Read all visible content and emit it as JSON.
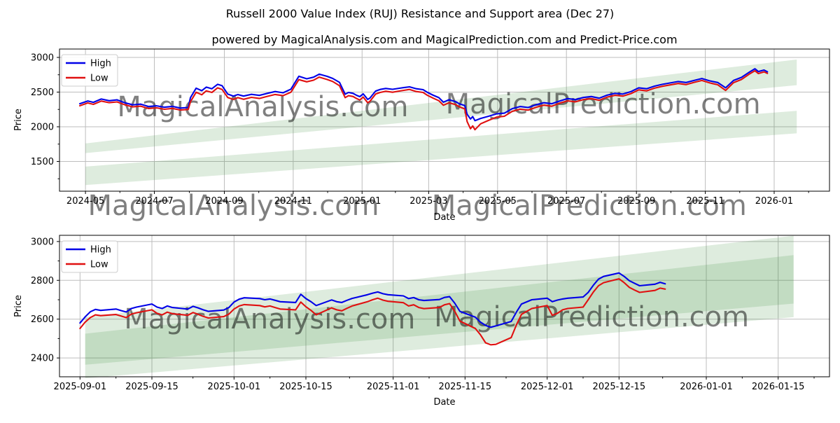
{
  "figure": {
    "title": "Russell 2000 Value Index (RUJ) Resistance and Support area (Dec 27)",
    "subtitle": "powered by MagicalAnalysis.com and MagicalPrediction.com and Predict-Price.com",
    "background": "#ffffff"
  },
  "colors": {
    "high_line": "#0000e8",
    "low_line": "#e01010",
    "band_fill": "#3c8c3c",
    "grid": "#bdbdbd",
    "spine": "#000000",
    "tick_text": "#000000",
    "watermark": "#bbbbbb",
    "legend_border": "#cccccc",
    "legend_fill": "#ffffff"
  },
  "chart_data": [
    {
      "type": "line",
      "name": "overview-chart",
      "xlabel": "Date",
      "ylabel": "Price",
      "xlim": [
        "2024-04-08",
        "2026-02-19"
      ],
      "ylim": [
        1071,
        3121
      ],
      "yticks": [
        1500,
        2000,
        2500,
        3000
      ],
      "xticks": [
        {
          "d": "2024-05-01",
          "label": "2024-05"
        },
        {
          "d": "2024-07-01",
          "label": "2024-07"
        },
        {
          "d": "2024-09-01",
          "label": "2024-09"
        },
        {
          "d": "2024-11-01",
          "label": "2024-11"
        },
        {
          "d": "2025-01-01",
          "label": "2025-01"
        },
        {
          "d": "2025-03-01",
          "label": "2025-03"
        },
        {
          "d": "2025-05-01",
          "label": "2025-05"
        },
        {
          "d": "2025-07-01",
          "label": "2025-07"
        },
        {
          "d": "2025-09-01",
          "label": "2025-09"
        },
        {
          "d": "2025-11-01",
          "label": "2025-11"
        },
        {
          "d": "2026-01-01",
          "label": "2026-01"
        }
      ],
      "legend_labels": [
        "High",
        "Low"
      ],
      "dates": [
        "2024-04-26",
        "2024-05-03",
        "2024-05-08",
        "2024-05-15",
        "2024-05-22",
        "2024-05-29",
        "2024-06-05",
        "2024-06-12",
        "2024-06-19",
        "2024-06-26",
        "2024-07-03",
        "2024-07-10",
        "2024-07-17",
        "2024-07-24",
        "2024-07-31",
        "2024-08-02",
        "2024-08-07",
        "2024-08-12",
        "2024-08-16",
        "2024-08-21",
        "2024-08-26",
        "2024-08-30",
        "2024-09-04",
        "2024-09-09",
        "2024-09-13",
        "2024-09-18",
        "2024-09-25",
        "2024-10-02",
        "2024-10-09",
        "2024-10-16",
        "2024-10-23",
        "2024-10-30",
        "2024-11-06",
        "2024-11-13",
        "2024-11-19",
        "2024-11-24",
        "2024-12-01",
        "2024-12-06",
        "2024-12-12",
        "2024-12-17",
        "2024-12-20",
        "2024-12-24",
        "2024-12-27",
        "2024-12-30",
        "2025-01-02",
        "2025-01-06",
        "2025-01-08",
        "2025-01-13",
        "2025-01-17",
        "2025-01-22",
        "2025-01-28",
        "2025-02-03",
        "2025-02-07",
        "2025-02-12",
        "2025-02-18",
        "2025-02-24",
        "2025-02-28",
        "2025-03-05",
        "2025-03-10",
        "2025-03-14",
        "2025-03-19",
        "2025-03-25",
        "2025-03-28",
        "2025-04-02",
        "2025-04-04",
        "2025-04-07",
        "2025-04-09",
        "2025-04-11",
        "2025-04-16",
        "2025-04-23",
        "2025-04-30",
        "2025-05-07",
        "2025-05-14",
        "2025-05-21",
        "2025-05-28",
        "2025-06-04",
        "2025-06-11",
        "2025-06-18",
        "2025-06-25",
        "2025-07-02",
        "2025-07-09",
        "2025-07-16",
        "2025-07-23",
        "2025-07-30",
        "2025-08-06",
        "2025-08-13",
        "2025-08-20",
        "2025-08-27",
        "2025-09-03",
        "2025-09-10",
        "2025-09-17",
        "2025-09-24",
        "2025-10-01",
        "2025-10-08",
        "2025-10-15",
        "2025-10-22",
        "2025-10-29",
        "2025-11-05",
        "2025-11-12",
        "2025-11-19",
        "2025-11-26",
        "2025-12-03",
        "2025-12-10",
        "2025-12-15",
        "2025-12-18",
        "2025-12-23",
        "2025-12-26"
      ],
      "series": [
        {
          "name": "High",
          "color": "#0000e8",
          "values": [
            2332,
            2372,
            2352,
            2400,
            2376,
            2388,
            2345,
            2316,
            2326,
            2292,
            2302,
            2282,
            2294,
            2270,
            2278,
            2420,
            2556,
            2520,
            2572,
            2548,
            2612,
            2592,
            2472,
            2442,
            2465,
            2442,
            2468,
            2452,
            2482,
            2508,
            2490,
            2542,
            2728,
            2692,
            2715,
            2758,
            2727,
            2697,
            2640,
            2470,
            2495,
            2482,
            2455,
            2434,
            2475,
            2394,
            2414,
            2515,
            2538,
            2552,
            2540,
            2555,
            2565,
            2576,
            2548,
            2535,
            2495,
            2455,
            2420,
            2355,
            2390,
            2362,
            2332,
            2305,
            2180,
            2112,
            2146,
            2088,
            2120,
            2152,
            2186,
            2196,
            2262,
            2292,
            2278,
            2316,
            2346,
            2332,
            2372,
            2406,
            2392,
            2422,
            2436,
            2412,
            2456,
            2482,
            2472,
            2506,
            2562,
            2548,
            2586,
            2612,
            2632,
            2652,
            2638,
            2668,
            2696,
            2662,
            2638,
            2562,
            2668,
            2712,
            2788,
            2836,
            2796,
            2818,
            2792
          ]
        },
        {
          "name": "Low",
          "color": "#e01010",
          "values": [
            2303,
            2343,
            2323,
            2371,
            2347,
            2359,
            2316,
            2287,
            2297,
            2263,
            2273,
            2253,
            2265,
            2241,
            2249,
            2362,
            2498,
            2462,
            2518,
            2495,
            2562,
            2538,
            2422,
            2394,
            2420,
            2396,
            2424,
            2408,
            2438,
            2466,
            2448,
            2498,
            2680,
            2648,
            2672,
            2716,
            2682,
            2652,
            2592,
            2420,
            2448,
            2436,
            2408,
            2386,
            2428,
            2346,
            2368,
            2472,
            2495,
            2512,
            2498,
            2515,
            2525,
            2538,
            2508,
            2495,
            2452,
            2412,
            2376,
            2310,
            2346,
            2318,
            2288,
            2258,
            2075,
            1972,
            2012,
            1958,
            2042,
            2092,
            2138,
            2152,
            2222,
            2254,
            2240,
            2280,
            2312,
            2296,
            2340,
            2374,
            2360,
            2392,
            2406,
            2382,
            2427,
            2453,
            2442,
            2477,
            2532,
            2518,
            2556,
            2584,
            2604,
            2624,
            2608,
            2640,
            2668,
            2632,
            2606,
            2524,
            2636,
            2682,
            2760,
            2808,
            2768,
            2792,
            2770
          ]
        }
      ],
      "bands": [
        {
          "name": "resistance-area",
          "x": [
            "2024-05-01",
            "2026-01-21"
          ],
          "top": [
            1760,
            2970
          ],
          "bottom": [
            1620,
            2600
          ]
        },
        {
          "name": "support-area",
          "x": [
            "2024-05-01",
            "2026-01-21"
          ],
          "top": [
            1425,
            2230
          ],
          "bottom": [
            1160,
            1905
          ]
        }
      ],
      "watermarks": [
        {
          "text": "MagicalAnalysis.com",
          "fx": 0.264,
          "fy": 0.404
        },
        {
          "text": "MagicalPrediction.com",
          "fx": 0.706,
          "fy": 0.384
        },
        {
          "text": "MagicalAnalysis.com",
          "fx": 0.226,
          "fy": 1.098
        },
        {
          "text": "MagicalPrediction.com",
          "fx": 0.688,
          "fy": 1.098
        }
      ]
    },
    {
      "type": "line",
      "name": "detail-chart",
      "xlabel": "Date",
      "ylabel": "Price",
      "xlim": [
        "2025-08-28",
        "2026-01-25"
      ],
      "ylim": [
        2303,
        3032
      ],
      "yticks": [
        2400,
        2600,
        2800,
        3000
      ],
      "xticks": [
        {
          "d": "2025-09-01",
          "label": "2025-09-01"
        },
        {
          "d": "2025-09-15",
          "label": "2025-09-15"
        },
        {
          "d": "2025-10-01",
          "label": "2025-10-01"
        },
        {
          "d": "2025-10-15",
          "label": "2025-10-15"
        },
        {
          "d": "2025-11-01",
          "label": "2025-11-01"
        },
        {
          "d": "2025-11-15",
          "label": "2025-11-15"
        },
        {
          "d": "2025-12-01",
          "label": "2025-12-01"
        },
        {
          "d": "2025-12-15",
          "label": "2025-12-15"
        },
        {
          "d": "2026-01-01",
          "label": "2026-01-01"
        },
        {
          "d": "2026-01-15",
          "label": "2026-01-15"
        }
      ],
      "legend_labels": [
        "High",
        "Low"
      ],
      "dates": [
        "2025-09-01",
        "2025-09-02",
        "2025-09-03",
        "2025-09-04",
        "2025-09-05",
        "2025-09-08",
        "2025-09-09",
        "2025-09-10",
        "2025-09-11",
        "2025-09-12",
        "2025-09-15",
        "2025-09-16",
        "2025-09-17",
        "2025-09-18",
        "2025-09-19",
        "2025-09-22",
        "2025-09-23",
        "2025-09-24",
        "2025-09-25",
        "2025-09-26",
        "2025-09-29",
        "2025-09-30",
        "2025-10-01",
        "2025-10-02",
        "2025-10-03",
        "2025-10-06",
        "2025-10-07",
        "2025-10-08",
        "2025-10-09",
        "2025-10-10",
        "2025-10-13",
        "2025-10-14",
        "2025-10-15",
        "2025-10-16",
        "2025-10-17",
        "2025-10-20",
        "2025-10-21",
        "2025-10-22",
        "2025-10-23",
        "2025-10-24",
        "2025-10-27",
        "2025-10-28",
        "2025-10-29",
        "2025-10-30",
        "2025-10-31",
        "2025-11-03",
        "2025-11-04",
        "2025-11-05",
        "2025-11-06",
        "2025-11-07",
        "2025-11-10",
        "2025-11-11",
        "2025-11-12",
        "2025-11-13",
        "2025-11-14",
        "2025-11-17",
        "2025-11-18",
        "2025-11-19",
        "2025-11-20",
        "2025-11-21",
        "2025-11-24",
        "2025-11-25",
        "2025-11-26",
        "2025-11-28",
        "2025-12-01",
        "2025-12-02",
        "2025-12-03",
        "2025-12-04",
        "2025-12-05",
        "2025-12-08",
        "2025-12-09",
        "2025-12-10",
        "2025-12-11",
        "2025-12-12",
        "2025-12-15",
        "2025-12-16",
        "2025-12-17",
        "2025-12-18",
        "2025-12-19",
        "2025-12-22",
        "2025-12-23",
        "2025-12-24"
      ],
      "series": [
        {
          "name": "High",
          "color": "#0000e8",
          "values": [
            2580,
            2612,
            2638,
            2650,
            2645,
            2652,
            2644,
            2637,
            2655,
            2662,
            2678,
            2662,
            2655,
            2668,
            2660,
            2652,
            2666,
            2658,
            2648,
            2640,
            2647,
            2660,
            2688,
            2703,
            2710,
            2706,
            2700,
            2704,
            2697,
            2690,
            2686,
            2728,
            2706,
            2690,
            2670,
            2699,
            2690,
            2686,
            2697,
            2707,
            2726,
            2734,
            2740,
            2731,
            2726,
            2720,
            2706,
            2711,
            2700,
            2696,
            2701,
            2712,
            2716,
            2682,
            2640,
            2610,
            2585,
            2568,
            2558,
            2565,
            2588,
            2636,
            2678,
            2700,
            2708,
            2690,
            2698,
            2704,
            2708,
            2714,
            2738,
            2775,
            2806,
            2820,
            2838,
            2820,
            2798,
            2785,
            2772,
            2780,
            2790,
            2782
          ]
        },
        {
          "name": "Low",
          "color": "#e01010",
          "values": [
            2552,
            2585,
            2608,
            2622,
            2618,
            2624,
            2616,
            2608,
            2626,
            2633,
            2648,
            2630,
            2622,
            2636,
            2628,
            2620,
            2634,
            2625,
            2614,
            2606,
            2613,
            2626,
            2652,
            2668,
            2675,
            2670,
            2663,
            2668,
            2660,
            2652,
            2648,
            2688,
            2664,
            2645,
            2622,
            2658,
            2648,
            2643,
            2656,
            2668,
            2690,
            2700,
            2708,
            2698,
            2692,
            2685,
            2668,
            2674,
            2660,
            2654,
            2660,
            2674,
            2680,
            2640,
            2590,
            2552,
            2520,
            2478,
            2468,
            2470,
            2505,
            2570,
            2625,
            2655,
            2670,
            2620,
            2630,
            2648,
            2655,
            2662,
            2700,
            2740,
            2772,
            2788,
            2808,
            2788,
            2764,
            2750,
            2738,
            2748,
            2760,
            2755
          ]
        }
      ],
      "bands": [
        {
          "name": "resistance-area",
          "x": [
            "2025-09-02",
            "2026-01-18"
          ],
          "top": [
            2610,
            3030
          ],
          "bottom": [
            2365,
            2680
          ]
        },
        {
          "name": "support-area",
          "x": [
            "2025-09-02",
            "2026-01-18"
          ],
          "top": [
            2525,
            2930
          ],
          "bottom": [
            2295,
            2610
          ]
        }
      ],
      "watermarks": [
        {
          "text": "MagicalAnalysis.com",
          "fx": 0.273,
          "fy": 0.589
        },
        {
          "text": "MagicalPrediction.com",
          "fx": 0.691,
          "fy": 0.574
        }
      ]
    }
  ]
}
